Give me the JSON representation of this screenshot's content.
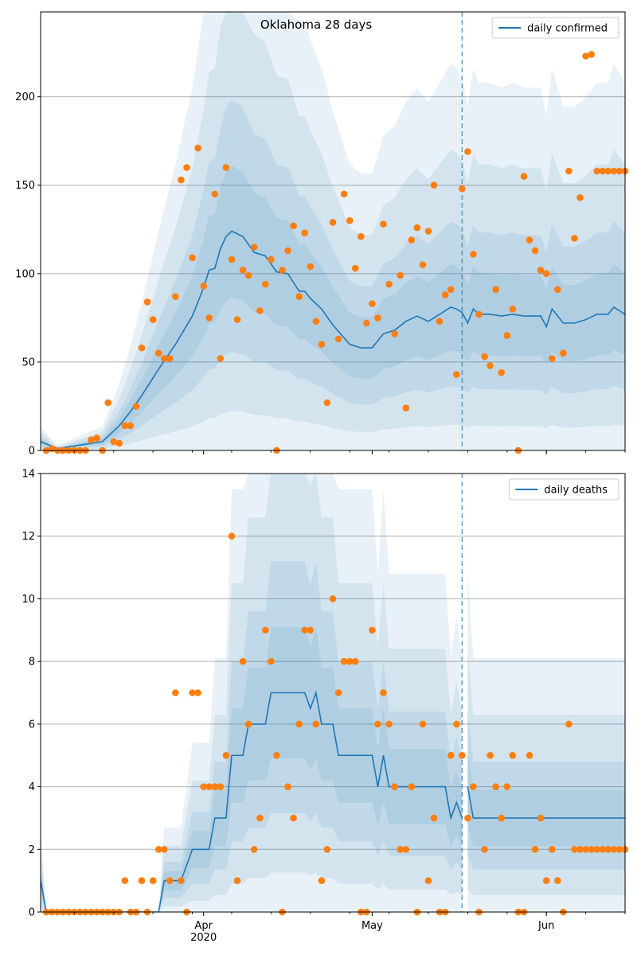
{
  "colors": {
    "line": "#1f77b4",
    "points": "#ff7f0e",
    "band": "#1f77b4",
    "grid": "#b0b0b0",
    "vline": "#1f77b4",
    "axis": "#000000"
  },
  "chart_data": [
    {
      "type": "line",
      "title": "Oklahoma 28 days",
      "xlabel": "",
      "ylabel": "",
      "x_axis": {
        "type": "date",
        "start": "2020-03-03",
        "end": "2020-06-15",
        "major_ticks": [
          "2020-04-01",
          "2020-05-01",
          "2020-06-01"
        ],
        "major_tick_labels": [
          "Apr\n2020",
          "May",
          "Jun"
        ]
      },
      "ylim": [
        0,
        248
      ],
      "yticks": [
        0,
        50,
        100,
        150,
        200
      ],
      "grid": "horizontal",
      "legend": {
        "placement": "top-right",
        "label": "daily confirmed"
      },
      "forecast_start": "2020-05-18",
      "series": [
        {
          "name": "daily confirmed",
          "kind": "line",
          "x": [
            "2020-03-03",
            "2020-03-06",
            "2020-03-10",
            "2020-03-14",
            "2020-03-17",
            "2020-03-19",
            "2020-03-21",
            "2020-03-24",
            "2020-03-27",
            "2020-03-30",
            "2020-04-01",
            "2020-04-02",
            "2020-04-03",
            "2020-04-04",
            "2020-04-05",
            "2020-04-06",
            "2020-04-08",
            "2020-04-10",
            "2020-04-12",
            "2020-04-14",
            "2020-04-16",
            "2020-04-18",
            "2020-04-19",
            "2020-04-20",
            "2020-04-21",
            "2020-04-22",
            "2020-04-24",
            "2020-04-27",
            "2020-04-29",
            "2020-04-30",
            "2020-05-01",
            "2020-05-03",
            "2020-05-05",
            "2020-05-07",
            "2020-05-09",
            "2020-05-11",
            "2020-05-13",
            "2020-05-15",
            "2020-05-16",
            "2020-05-17",
            "2020-05-18",
            "2020-05-19",
            "2020-05-20",
            "2020-05-22",
            "2020-05-24",
            "2020-05-26",
            "2020-05-28",
            "2020-05-31",
            "2020-06-01",
            "2020-06-02",
            "2020-06-04",
            "2020-06-06",
            "2020-06-08",
            "2020-06-10",
            "2020-06-12",
            "2020-06-13",
            "2020-06-15"
          ],
          "values": [
            5,
            1,
            3,
            5,
            14,
            22,
            31,
            46,
            60,
            76,
            92,
            102,
            103,
            114,
            121,
            124,
            121,
            112,
            110,
            101,
            100,
            90,
            90,
            86,
            83,
            80,
            71,
            60,
            58,
            58,
            58,
            66,
            68,
            73,
            76,
            73,
            77,
            81,
            80,
            78,
            72,
            80,
            77,
            77,
            76,
            77,
            76,
            76,
            70,
            80,
            72,
            72,
            74,
            77,
            77,
            81,
            77
          ],
          "color": "#1f77b4"
        },
        {
          "name": "",
          "kind": "scatter",
          "x": [
            "2020-03-04",
            "2020-03-05",
            "2020-03-06",
            "2020-03-07",
            "2020-03-08",
            "2020-03-09",
            "2020-03-10",
            "2020-03-11",
            "2020-03-12",
            "2020-03-13",
            "2020-03-14",
            "2020-03-15",
            "2020-03-16",
            "2020-03-17",
            "2020-03-18",
            "2020-03-19",
            "2020-03-20",
            "2020-03-21",
            "2020-03-22",
            "2020-03-23",
            "2020-03-24",
            "2020-03-25",
            "2020-03-26",
            "2020-03-27",
            "2020-03-28",
            "2020-03-29",
            "2020-03-30",
            "2020-03-31",
            "2020-04-01",
            "2020-04-02",
            "2020-04-03",
            "2020-04-04",
            "2020-04-05",
            "2020-04-06",
            "2020-04-07",
            "2020-04-08",
            "2020-04-09",
            "2020-04-10",
            "2020-04-11",
            "2020-04-12",
            "2020-04-13",
            "2020-04-14",
            "2020-04-15",
            "2020-04-16",
            "2020-04-17",
            "2020-04-18",
            "2020-04-19",
            "2020-04-20",
            "2020-04-21",
            "2020-04-22",
            "2020-04-23",
            "2020-04-24",
            "2020-04-25",
            "2020-04-26",
            "2020-04-27",
            "2020-04-28",
            "2020-04-29",
            "2020-04-30",
            "2020-05-01",
            "2020-05-02",
            "2020-05-03",
            "2020-05-04",
            "2020-05-05",
            "2020-05-06",
            "2020-05-07",
            "2020-05-08",
            "2020-05-09",
            "2020-05-10",
            "2020-05-11",
            "2020-05-12",
            "2020-05-13",
            "2020-05-14",
            "2020-05-15",
            "2020-05-16",
            "2020-05-17",
            "2020-05-18",
            "2020-05-19",
            "2020-05-20",
            "2020-05-21",
            "2020-05-22",
            "2020-05-23",
            "2020-05-24",
            "2020-05-25",
            "2020-05-26",
            "2020-05-27",
            "2020-05-28",
            "2020-05-29",
            "2020-05-30",
            "2020-05-31",
            "2020-06-01",
            "2020-06-02",
            "2020-06-03",
            "2020-06-04",
            "2020-06-05",
            "2020-06-06",
            "2020-06-07",
            "2020-06-08",
            "2020-06-09",
            "2020-06-10",
            "2020-06-11",
            "2020-06-12",
            "2020-06-13",
            "2020-06-14",
            "2020-06-15"
          ],
          "values": [
            0,
            1,
            0,
            0,
            0,
            0,
            0,
            0,
            6,
            7,
            0,
            27,
            5,
            4,
            14,
            14,
            25,
            58,
            84,
            74,
            55,
            52,
            52,
            87,
            153,
            160,
            109,
            171,
            93,
            75,
            145,
            52,
            160,
            108,
            74,
            102,
            99,
            115,
            79,
            94,
            108,
            0,
            102,
            113,
            127,
            87,
            123,
            104,
            73,
            60,
            27,
            129,
            63,
            145,
            130,
            103,
            121,
            72,
            83,
            75,
            128,
            94,
            66,
            99,
            24,
            119,
            126,
            105,
            124,
            150,
            73,
            88,
            91,
            43,
            148,
            169,
            111,
            77,
            53,
            48,
            91,
            44,
            65,
            80,
            0,
            155,
            119,
            113,
            102,
            100,
            52,
            91,
            55,
            158,
            120,
            143,
            223,
            224,
            158,
            158,
            158,
            158,
            158,
            158
          ],
          "color": "#ff7f0e"
        }
      ]
    },
    {
      "type": "line",
      "title": "",
      "xlabel": "",
      "ylabel": "",
      "x_axis": {
        "type": "date",
        "start": "2020-03-03",
        "end": "2020-06-15",
        "major_ticks": [
          "2020-04-01",
          "2020-05-01",
          "2020-06-01"
        ],
        "major_tick_labels": [
          "Apr\n2020",
          "May",
          "Jun"
        ]
      },
      "ylim": [
        0,
        14
      ],
      "yticks": [
        0,
        2,
        4,
        6,
        8,
        10,
        12,
        14
      ],
      "grid": "horizontal",
      "legend": {
        "placement": "top-right",
        "label": "daily deaths"
      },
      "forecast_start": "2020-05-18",
      "series": [
        {
          "name": "daily deaths",
          "kind": "line",
          "x": [
            "2020-03-03",
            "2020-03-04",
            "2020-03-24",
            "2020-03-25",
            "2020-03-27",
            "2020-03-28",
            "2020-03-30",
            "2020-03-31",
            "2020-04-02",
            "2020-04-03",
            "2020-04-05",
            "2020-04-06",
            "2020-04-08",
            "2020-04-09",
            "2020-04-10",
            "2020-04-11",
            "2020-04-12",
            "2020-04-13",
            "2020-04-14",
            "2020-04-15",
            "2020-04-16",
            "2020-04-17",
            "2020-04-18",
            "2020-04-19",
            "2020-04-20",
            "2020-04-21",
            "2020-04-22",
            "2020-04-23",
            "2020-04-24",
            "2020-04-25",
            "2020-04-26",
            "2020-04-27",
            "2020-04-28",
            "2020-04-29",
            "2020-04-30",
            "2020-05-01",
            "2020-05-02",
            "2020-05-03",
            "2020-05-04",
            "2020-05-06",
            "2020-05-08",
            "2020-05-10",
            "2020-05-12",
            "2020-05-13",
            "2020-05-14",
            "2020-05-15",
            "2020-05-16",
            "2020-05-17"
          ],
          "values": [
            1,
            0,
            0,
            1,
            1,
            1,
            2,
            2,
            2,
            3,
            3,
            5,
            5,
            6,
            6,
            6,
            6,
            7,
            7,
            7,
            7,
            7,
            7,
            7,
            6.5,
            7,
            6,
            6,
            6,
            5,
            5,
            5,
            5,
            5,
            5,
            5,
            4,
            5,
            4,
            4,
            4,
            4,
            4,
            4,
            4,
            3,
            3.5,
            3
          ],
          "color": "#1f77b4"
        },
        {
          "name": "",
          "kind": "line",
          "x": [
            "2020-05-18",
            "2020-05-19",
            "2020-06-15"
          ],
          "values": [
            4,
            3,
            3
          ],
          "color": "#1f77b4"
        },
        {
          "name": "",
          "kind": "scatter",
          "x": [
            "2020-03-04",
            "2020-03-05",
            "2020-03-06",
            "2020-03-07",
            "2020-03-08",
            "2020-03-09",
            "2020-03-10",
            "2020-03-11",
            "2020-03-12",
            "2020-03-13",
            "2020-03-14",
            "2020-03-15",
            "2020-03-16",
            "2020-03-17",
            "2020-03-18",
            "2020-03-19",
            "2020-03-20",
            "2020-03-21",
            "2020-03-22",
            "2020-03-23",
            "2020-03-24",
            "2020-03-25",
            "2020-03-26",
            "2020-03-27",
            "2020-03-28",
            "2020-03-29",
            "2020-03-30",
            "2020-03-31",
            "2020-04-01",
            "2020-04-02",
            "2020-04-03",
            "2020-04-04",
            "2020-04-05",
            "2020-04-06",
            "2020-04-07",
            "2020-04-08",
            "2020-04-09",
            "2020-04-10",
            "2020-04-11",
            "2020-04-12",
            "2020-04-13",
            "2020-04-14",
            "2020-04-15",
            "2020-04-16",
            "2020-04-17",
            "2020-04-18",
            "2020-04-19",
            "2020-04-20",
            "2020-04-21",
            "2020-04-22",
            "2020-04-23",
            "2020-04-24",
            "2020-04-25",
            "2020-04-26",
            "2020-04-27",
            "2020-04-28",
            "2020-04-29",
            "2020-04-30",
            "2020-05-01",
            "2020-05-02",
            "2020-05-03",
            "2020-05-04",
            "2020-05-05",
            "2020-05-06",
            "2020-05-07",
            "2020-05-08",
            "2020-05-09",
            "2020-05-10",
            "2020-05-11",
            "2020-05-12",
            "2020-05-13",
            "2020-05-14",
            "2020-05-15",
            "2020-05-16",
            "2020-05-17",
            "2020-05-18",
            "2020-05-19",
            "2020-05-20",
            "2020-05-21",
            "2020-05-22",
            "2020-05-23",
            "2020-05-24",
            "2020-05-25",
            "2020-05-26",
            "2020-05-27",
            "2020-05-28",
            "2020-05-29",
            "2020-05-30",
            "2020-05-31",
            "2020-06-01",
            "2020-06-02",
            "2020-06-03",
            "2020-06-04",
            "2020-06-05",
            "2020-06-06",
            "2020-06-07",
            "2020-06-08",
            "2020-06-09",
            "2020-06-10",
            "2020-06-11",
            "2020-06-12",
            "2020-06-13",
            "2020-06-14",
            "2020-06-15"
          ],
          "values": [
            0,
            0,
            0,
            0,
            0,
            0,
            0,
            0,
            0,
            0,
            0,
            0,
            0,
            0,
            1,
            0,
            0,
            1,
            0,
            1,
            2,
            2,
            1,
            7,
            1,
            0,
            7,
            7,
            4,
            4,
            4,
            4,
            5,
            12,
            1,
            8,
            6,
            2,
            3,
            9,
            8,
            5,
            0,
            4,
            3,
            6,
            9,
            9,
            6,
            1,
            2,
            10,
            7,
            8,
            8,
            8,
            0,
            0,
            9,
            6,
            7,
            6,
            4,
            2,
            2,
            4,
            0,
            6,
            1,
            3,
            0,
            0,
            5,
            6,
            5,
            3,
            4,
            0,
            2,
            5,
            4,
            3,
            4,
            5,
            0,
            0,
            5,
            2,
            3,
            1,
            2,
            1,
            0,
            6,
            2,
            2,
            2,
            2,
            2,
            2,
            2,
            2,
            2,
            2
          ],
          "color": "#ff7f0e"
        }
      ]
    }
  ]
}
